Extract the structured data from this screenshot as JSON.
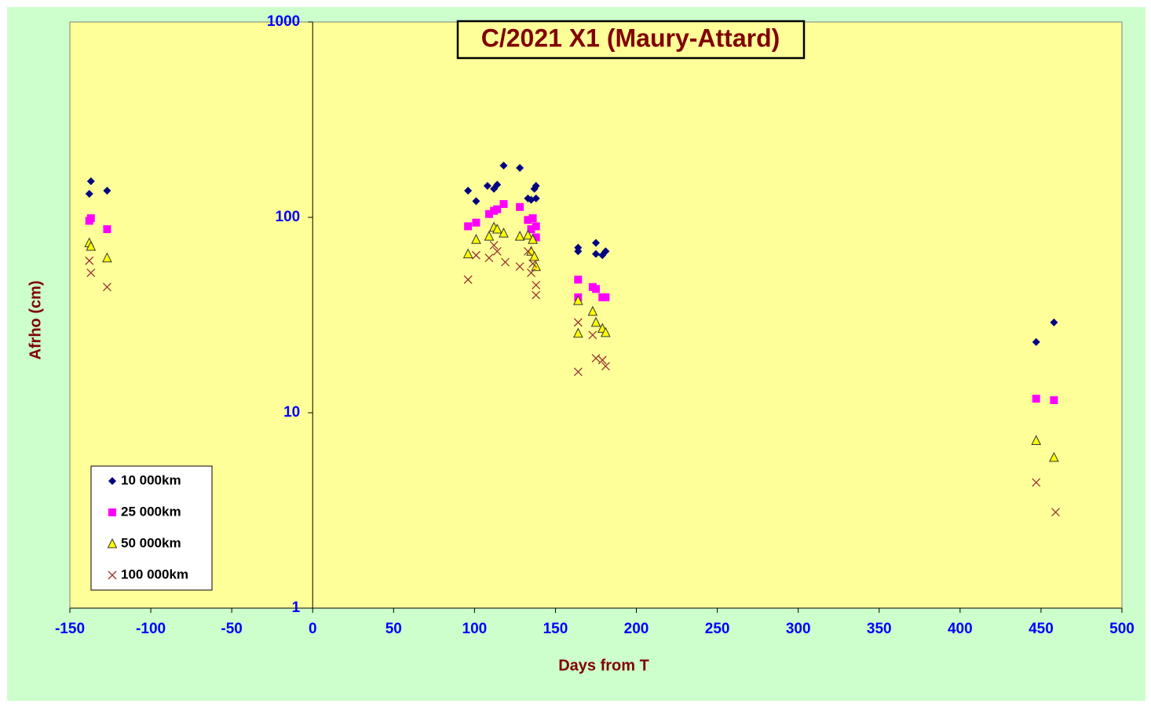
{
  "chart_data": {
    "type": "scatter",
    "title": "C/2021 X1 (Maury-Attard)",
    "x_label": "Days from T",
    "y_label": "Afrho (cm)",
    "xlim": [
      -150,
      500
    ],
    "xticks": [
      -150,
      -100,
      -50,
      0,
      50,
      100,
      150,
      200,
      250,
      300,
      350,
      400,
      450,
      500
    ],
    "ylim": [
      1,
      1000
    ],
    "yticks": [
      1,
      10,
      100,
      1000
    ],
    "log_y": true,
    "legend": "lower left",
    "series": [
      {
        "name": "10 000km",
        "color": "#000080",
        "marker": "diamond",
        "x": [
          -138,
          -137,
          -127,
          96,
          101,
          108,
          112,
          114,
          118,
          128,
          133,
          135,
          137,
          138,
          138,
          164,
          164,
          175,
          175,
          179,
          181,
          447,
          458
        ],
        "values": [
          132,
          153,
          137,
          137,
          121,
          145,
          140,
          147,
          184,
          179,
          125,
          123,
          140,
          145,
          125,
          70,
          67,
          65,
          74,
          64,
          67,
          23,
          29
        ]
      },
      {
        "name": "25 000km",
        "color": "#ff00ff",
        "marker": "square",
        "x": [
          -138,
          -137,
          -127,
          96,
          101,
          109,
          112,
          114,
          118,
          128,
          133,
          135,
          136,
          138,
          138,
          164,
          164,
          173,
          175,
          179,
          181,
          447,
          458
        ],
        "values": [
          96,
          99,
          87,
          90,
          94,
          104,
          108,
          110,
          117,
          113,
          97,
          87,
          99,
          90,
          79,
          39,
          48,
          44,
          43,
          39,
          39,
          11.8,
          11.6
        ]
      },
      {
        "name": "50 000km",
        "color": "#ffff00",
        "marker": "triangle",
        "x": [
          -138,
          -137,
          -127,
          96,
          101,
          109,
          112,
          114,
          118,
          128,
          133,
          135,
          136,
          137,
          138,
          164,
          164,
          173,
          175,
          179,
          181,
          447,
          458
        ],
        "values": [
          74,
          71,
          62,
          65,
          77,
          80,
          89,
          87,
          83,
          80,
          81,
          67,
          77,
          63,
          56,
          25.5,
          37.5,
          33,
          29,
          27,
          25.7,
          7.2,
          5.9
        ]
      },
      {
        "name": "100 000km",
        "color": "#993333",
        "marker": "x",
        "x": [
          -138,
          -137,
          -127,
          96,
          101,
          109,
          112,
          114,
          119,
          128,
          133,
          135,
          136,
          138,
          138,
          164,
          164,
          173,
          175,
          179,
          181,
          447,
          459
        ],
        "values": [
          60,
          52,
          44,
          48,
          64,
          62,
          72,
          67,
          59,
          56,
          67,
          52,
          58,
          45,
          40,
          16.2,
          29,
          25,
          19,
          18.6,
          17.3,
          4.4,
          3.1
        ]
      }
    ]
  }
}
